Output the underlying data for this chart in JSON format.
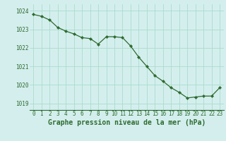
{
  "x": [
    0,
    1,
    2,
    3,
    4,
    5,
    6,
    7,
    8,
    9,
    10,
    11,
    12,
    13,
    14,
    15,
    16,
    17,
    18,
    19,
    20,
    21,
    22,
    23
  ],
  "y": [
    1023.8,
    1023.7,
    1023.5,
    1023.1,
    1022.9,
    1022.75,
    1022.55,
    1022.5,
    1022.2,
    1022.6,
    1022.6,
    1022.55,
    1022.1,
    1021.5,
    1021.0,
    1020.5,
    1020.2,
    1019.85,
    1019.6,
    1019.3,
    1019.35,
    1019.4,
    1019.4,
    1019.85
  ],
  "ylim": [
    1018.65,
    1024.35
  ],
  "yticks": [
    1019,
    1020,
    1021,
    1022,
    1023,
    1024
  ],
  "xticks": [
    0,
    1,
    2,
    3,
    4,
    5,
    6,
    7,
    8,
    9,
    10,
    11,
    12,
    13,
    14,
    15,
    16,
    17,
    18,
    19,
    20,
    21,
    22,
    23
  ],
  "xlabel": "Graphe pression niveau de la mer (hPa)",
  "line_color": "#2d6b2d",
  "marker_color": "#2d6b2d",
  "bg_color": "#d4eeee",
  "grid_color": "#aaddcc",
  "xlabel_color": "#2d6b2d",
  "tick_label_color": "#2d6b2d",
  "xlabel_fontsize": 7.0,
  "tick_fontsize": 5.5,
  "linewidth": 0.9,
  "markersize": 2.2
}
